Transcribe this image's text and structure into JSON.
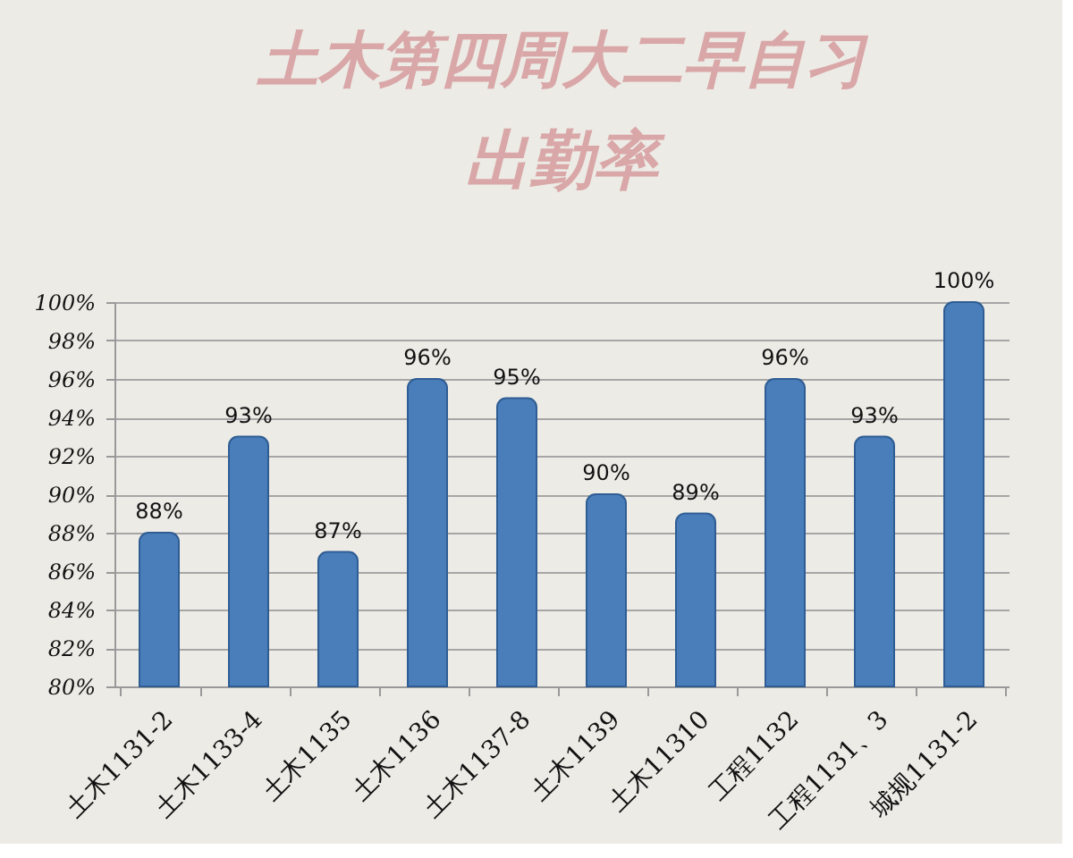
{
  "chart_data": {
    "type": "bar",
    "title": "土木第四周大二早自习",
    "subtitle": "出勤率",
    "categories": [
      "土木1131-2",
      "土木1133-4",
      "土木1135",
      "土木1136",
      "土木1137-8",
      "土木1139",
      "土木11310",
      "工程1132",
      "工程1131、3",
      "城规1131-2"
    ],
    "values": [
      88,
      93,
      87,
      96,
      95,
      90,
      89,
      96,
      93,
      100
    ],
    "value_labels": [
      "88%",
      "93%",
      "87%",
      "96%",
      "95%",
      "90%",
      "89%",
      "96%",
      "93%",
      "100%"
    ],
    "color": "#4a7ebb",
    "ylim": [
      80,
      100
    ],
    "yticks": [
      {
        "value": 80,
        "label": "80%"
      },
      {
        "value": 82,
        "label": "82%"
      },
      {
        "value": 84,
        "label": "84%"
      },
      {
        "value": 86,
        "label": "86%"
      },
      {
        "value": 88,
        "label": "88%"
      },
      {
        "value": 90,
        "label": "90%"
      },
      {
        "value": 92,
        "label": "92%"
      },
      {
        "value": 94,
        "label": "94%"
      },
      {
        "value": 96,
        "label": "96%"
      },
      {
        "value": 98,
        "label": "98%"
      },
      {
        "value": 100,
        "label": "100%"
      }
    ],
    "grid": "y"
  }
}
